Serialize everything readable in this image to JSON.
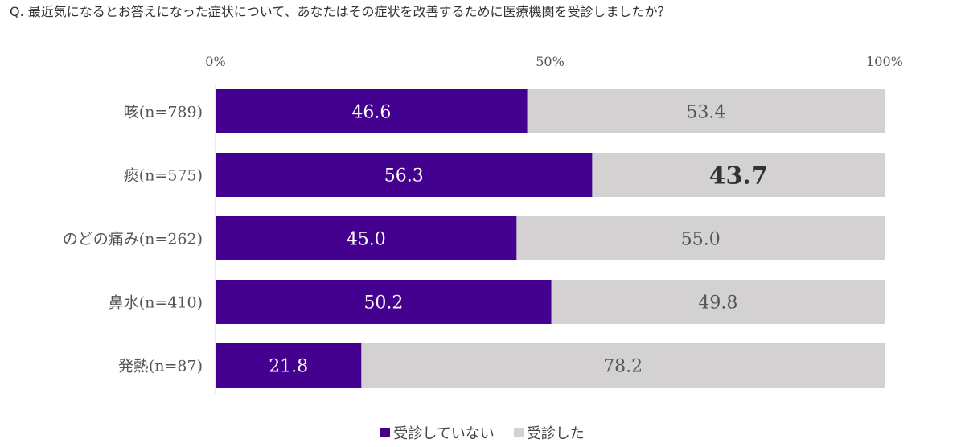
{
  "question": "Q. 最近気になるとお答えになった症状について、あなたはその症状を改善するために医療機関を受診しましたか？",
  "colors": {
    "not_visited": "#44008f",
    "visited": "#d3d1d2",
    "label_on_dark": "#ffffff",
    "label_on_light": "#555555",
    "axis_text": "#555555"
  },
  "chart_data": {
    "type": "bar",
    "orientation": "horizontal",
    "stacked": true,
    "percent": true,
    "categories": [
      "咳(n=789)",
      "痰(n=575)",
      "のどの痛み(n=262)",
      "鼻水(n=410)",
      "発熱(n=87)"
    ],
    "series": [
      {
        "name": "受診していない",
        "values": [
          46.6,
          56.3,
          45.0,
          50.2,
          21.8
        ],
        "labels": [
          "46.6",
          "56.3",
          "45.0",
          "50.2",
          "21.8"
        ]
      },
      {
        "name": "受診した",
        "values": [
          53.4,
          43.7,
          55.0,
          49.8,
          78.2
        ],
        "labels": [
          "53.4",
          "43.7",
          "55.0",
          "49.8",
          "78.2"
        ]
      }
    ],
    "xlim": [
      0,
      100
    ],
    "xticks": [
      "0%",
      "50%",
      "100%"
    ],
    "xtick_values": [
      0,
      50,
      100
    ],
    "emphasized_label": "43.7",
    "legend_position": "bottom",
    "grid": false
  }
}
